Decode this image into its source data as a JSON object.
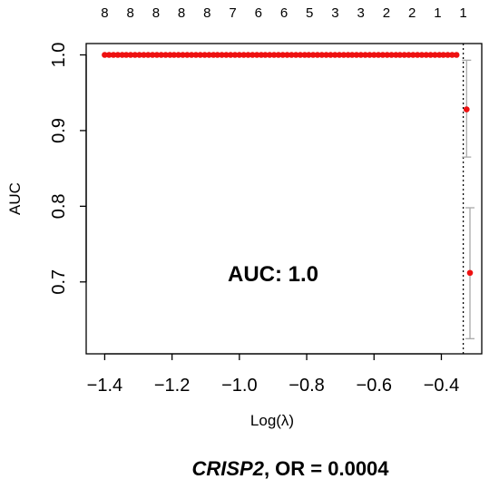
{
  "chart_data": {
    "type": "scatter",
    "xlabel": "Log(λ)",
    "ylabel": "AUC",
    "xlim": [
      -1.455,
      -0.28
    ],
    "ylim": [
      0.605,
      1.015
    ],
    "x_ticks": [
      -1.4,
      -1.2,
      -1.0,
      -0.8,
      -0.6,
      -0.4
    ],
    "x_tick_labels": [
      "−1.4",
      "−1.2",
      "−1.0",
      "−0.8",
      "−0.6",
      "−0.4"
    ],
    "y_ticks": [
      0.7,
      0.8,
      0.9,
      1.0
    ],
    "y_tick_labels": [
      "0.7",
      "0.8",
      "0.9",
      "1.0"
    ],
    "top_axis_labels": [
      "8",
      "8",
      "8",
      "8",
      "8",
      "7",
      "6",
      "6",
      "5",
      "3",
      "3",
      "2",
      "2",
      "1",
      "1"
    ],
    "annotation": "AUC: 1.0",
    "selected_lambda_log": -0.335,
    "series": [
      {
        "color": "#ee1111",
        "points": [
          {
            "x": -1.4,
            "y": 1.0
          },
          {
            "x": -1.387,
            "y": 1.0
          },
          {
            "x": -1.374,
            "y": 1.0
          },
          {
            "x": -1.361,
            "y": 1.0
          },
          {
            "x": -1.348,
            "y": 1.0
          },
          {
            "x": -1.336,
            "y": 1.0
          },
          {
            "x": -1.323,
            "y": 1.0
          },
          {
            "x": -1.31,
            "y": 1.0
          },
          {
            "x": -1.297,
            "y": 1.0
          },
          {
            "x": -1.284,
            "y": 1.0
          },
          {
            "x": -1.271,
            "y": 1.0
          },
          {
            "x": -1.258,
            "y": 1.0
          },
          {
            "x": -1.245,
            "y": 1.0
          },
          {
            "x": -1.232,
            "y": 1.0
          },
          {
            "x": -1.219,
            "y": 1.0
          },
          {
            "x": -1.206,
            "y": 1.0
          },
          {
            "x": -1.194,
            "y": 1.0
          },
          {
            "x": -1.181,
            "y": 1.0
          },
          {
            "x": -1.168,
            "y": 1.0
          },
          {
            "x": -1.155,
            "y": 1.0
          },
          {
            "x": -1.142,
            "y": 1.0
          },
          {
            "x": -1.129,
            "y": 1.0
          },
          {
            "x": -1.116,
            "y": 1.0
          },
          {
            "x": -1.103,
            "y": 1.0
          },
          {
            "x": -1.09,
            "y": 1.0
          },
          {
            "x": -1.077,
            "y": 1.0
          },
          {
            "x": -1.065,
            "y": 1.0
          },
          {
            "x": -1.052,
            "y": 1.0
          },
          {
            "x": -1.039,
            "y": 1.0
          },
          {
            "x": -1.026,
            "y": 1.0
          },
          {
            "x": -1.013,
            "y": 1.0
          },
          {
            "x": -1.0,
            "y": 1.0
          },
          {
            "x": -0.987,
            "y": 1.0
          },
          {
            "x": -0.974,
            "y": 1.0
          },
          {
            "x": -0.961,
            "y": 1.0
          },
          {
            "x": -0.948,
            "y": 1.0
          },
          {
            "x": -0.935,
            "y": 1.0
          },
          {
            "x": -0.923,
            "y": 1.0
          },
          {
            "x": -0.91,
            "y": 1.0
          },
          {
            "x": -0.897,
            "y": 1.0
          },
          {
            "x": -0.884,
            "y": 1.0
          },
          {
            "x": -0.871,
            "y": 1.0
          },
          {
            "x": -0.858,
            "y": 1.0
          },
          {
            "x": -0.845,
            "y": 1.0
          },
          {
            "x": -0.832,
            "y": 1.0
          },
          {
            "x": -0.819,
            "y": 1.0
          },
          {
            "x": -0.806,
            "y": 1.0
          },
          {
            "x": -0.794,
            "y": 1.0
          },
          {
            "x": -0.781,
            "y": 1.0
          },
          {
            "x": -0.768,
            "y": 1.0
          },
          {
            "x": -0.755,
            "y": 1.0
          },
          {
            "x": -0.742,
            "y": 1.0
          },
          {
            "x": -0.729,
            "y": 1.0
          },
          {
            "x": -0.716,
            "y": 1.0
          },
          {
            "x": -0.703,
            "y": 1.0
          },
          {
            "x": -0.69,
            "y": 1.0
          },
          {
            "x": -0.677,
            "y": 1.0
          },
          {
            "x": -0.665,
            "y": 1.0
          },
          {
            "x": -0.652,
            "y": 1.0
          },
          {
            "x": -0.639,
            "y": 1.0
          },
          {
            "x": -0.626,
            "y": 1.0
          },
          {
            "x": -0.613,
            "y": 1.0
          },
          {
            "x": -0.6,
            "y": 1.0
          },
          {
            "x": -0.587,
            "y": 1.0
          },
          {
            "x": -0.574,
            "y": 1.0
          },
          {
            "x": -0.561,
            "y": 1.0
          },
          {
            "x": -0.548,
            "y": 1.0
          },
          {
            "x": -0.535,
            "y": 1.0
          },
          {
            "x": -0.523,
            "y": 1.0
          },
          {
            "x": -0.51,
            "y": 1.0
          },
          {
            "x": -0.497,
            "y": 1.0
          },
          {
            "x": -0.484,
            "y": 1.0
          },
          {
            "x": -0.471,
            "y": 1.0
          },
          {
            "x": -0.458,
            "y": 1.0
          },
          {
            "x": -0.445,
            "y": 1.0
          },
          {
            "x": -0.432,
            "y": 1.0
          },
          {
            "x": -0.419,
            "y": 1.0
          },
          {
            "x": -0.406,
            "y": 1.0
          },
          {
            "x": -0.394,
            "y": 1.0
          },
          {
            "x": -0.381,
            "y": 1.0
          },
          {
            "x": -0.368,
            "y": 1.0
          },
          {
            "x": -0.355,
            "y": 1.0
          },
          {
            "x": -0.325,
            "y": 0.928,
            "err_low": 0.865,
            "err_high": 0.993
          },
          {
            "x": -0.315,
            "y": 0.712,
            "err_low": 0.625,
            "err_high": 0.798
          }
        ]
      }
    ]
  },
  "caption": {
    "gene": "CRISP2",
    "rest": ", OR = 0.0004"
  }
}
